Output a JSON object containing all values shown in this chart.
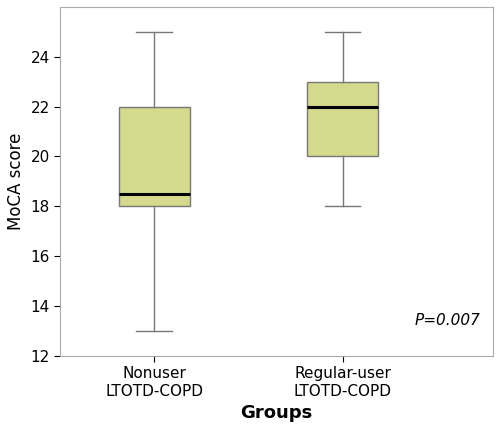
{
  "groups": [
    "Nonuser\nLTOTD-COPD",
    "Regular-user\nLTOTD-COPD"
  ],
  "box_data": [
    {
      "whislo": 13,
      "q1": 18,
      "med": 18.5,
      "q3": 22,
      "whishi": 25
    },
    {
      "whislo": 18,
      "q1": 20,
      "med": 22,
      "q3": 23,
      "whishi": 25
    }
  ],
  "ylim": [
    12,
    26
  ],
  "yticks": [
    12,
    14,
    16,
    18,
    20,
    22,
    24
  ],
  "ylabel": "MoCA score",
  "xlabel": "Groups",
  "box_color": "#d4d98c",
  "box_edge_color": "#777777",
  "median_color": "#000000",
  "whisker_color": "#777777",
  "cap_color": "#777777",
  "pvalue_text": "P=0.007",
  "background_color": "#ffffff",
  "box_width": 0.38,
  "label_fontsize": 12,
  "tick_fontsize": 11,
  "xlabel_fontsize": 13
}
